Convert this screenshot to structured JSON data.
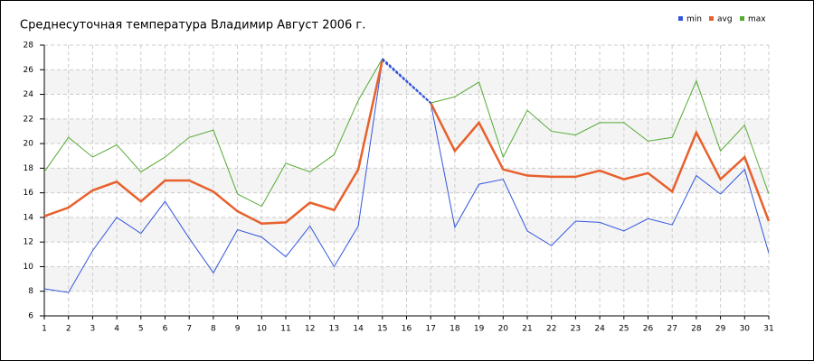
{
  "chart_data": {
    "type": "line",
    "title": "Среднесуточная температура Владимир  Август 2006 г.",
    "categories": [
      "1",
      "2",
      "3",
      "4",
      "5",
      "6",
      "7",
      "8",
      "9",
      "10",
      "11",
      "12",
      "13",
      "14",
      "15",
      "16",
      "17",
      "18",
      "19",
      "20",
      "21",
      "22",
      "23",
      "24",
      "25",
      "26",
      "27",
      "28",
      "29",
      "30",
      "31"
    ],
    "series": [
      {
        "name": "min",
        "color": "#3355dd",
        "values": [
          8.2,
          7.9,
          11.3,
          14.0,
          12.7,
          15.3,
          12.3,
          9.5,
          13.0,
          12.4,
          10.8,
          13.3,
          10.0,
          13.3,
          26.8,
          null,
          23.3,
          13.2,
          16.7,
          17.1,
          12.9,
          11.7,
          13.7,
          13.6,
          12.9,
          13.9,
          13.4,
          17.4,
          15.9,
          17.9,
          11.1
        ]
      },
      {
        "name": "avg",
        "color": "#e8602c",
        "values": [
          14.1,
          14.8,
          16.2,
          16.9,
          15.3,
          17.0,
          17.0,
          16.1,
          14.5,
          13.5,
          13.6,
          15.2,
          14.6,
          17.9,
          26.8,
          null,
          23.3,
          19.4,
          21.7,
          17.9,
          17.4,
          17.3,
          17.3,
          17.8,
          17.1,
          17.6,
          16.1,
          20.9,
          17.1,
          18.9,
          13.7
        ]
      },
      {
        "name": "max",
        "color": "#55aa33",
        "values": [
          17.7,
          20.5,
          18.9,
          19.9,
          17.7,
          18.9,
          20.5,
          21.1,
          15.9,
          14.9,
          18.4,
          17.7,
          19.1,
          23.5,
          26.9,
          null,
          23.3,
          23.8,
          25.0,
          18.9,
          22.7,
          21.0,
          20.7,
          21.7,
          21.7,
          20.2,
          20.5,
          25.1,
          19.4,
          21.5,
          15.9
        ]
      }
    ],
    "ylim": [
      6,
      28
    ],
    "yticks": [
      6,
      8,
      10,
      12,
      14,
      16,
      18,
      20,
      22,
      24,
      26,
      28
    ],
    "grid": true,
    "legend": "top-right"
  }
}
